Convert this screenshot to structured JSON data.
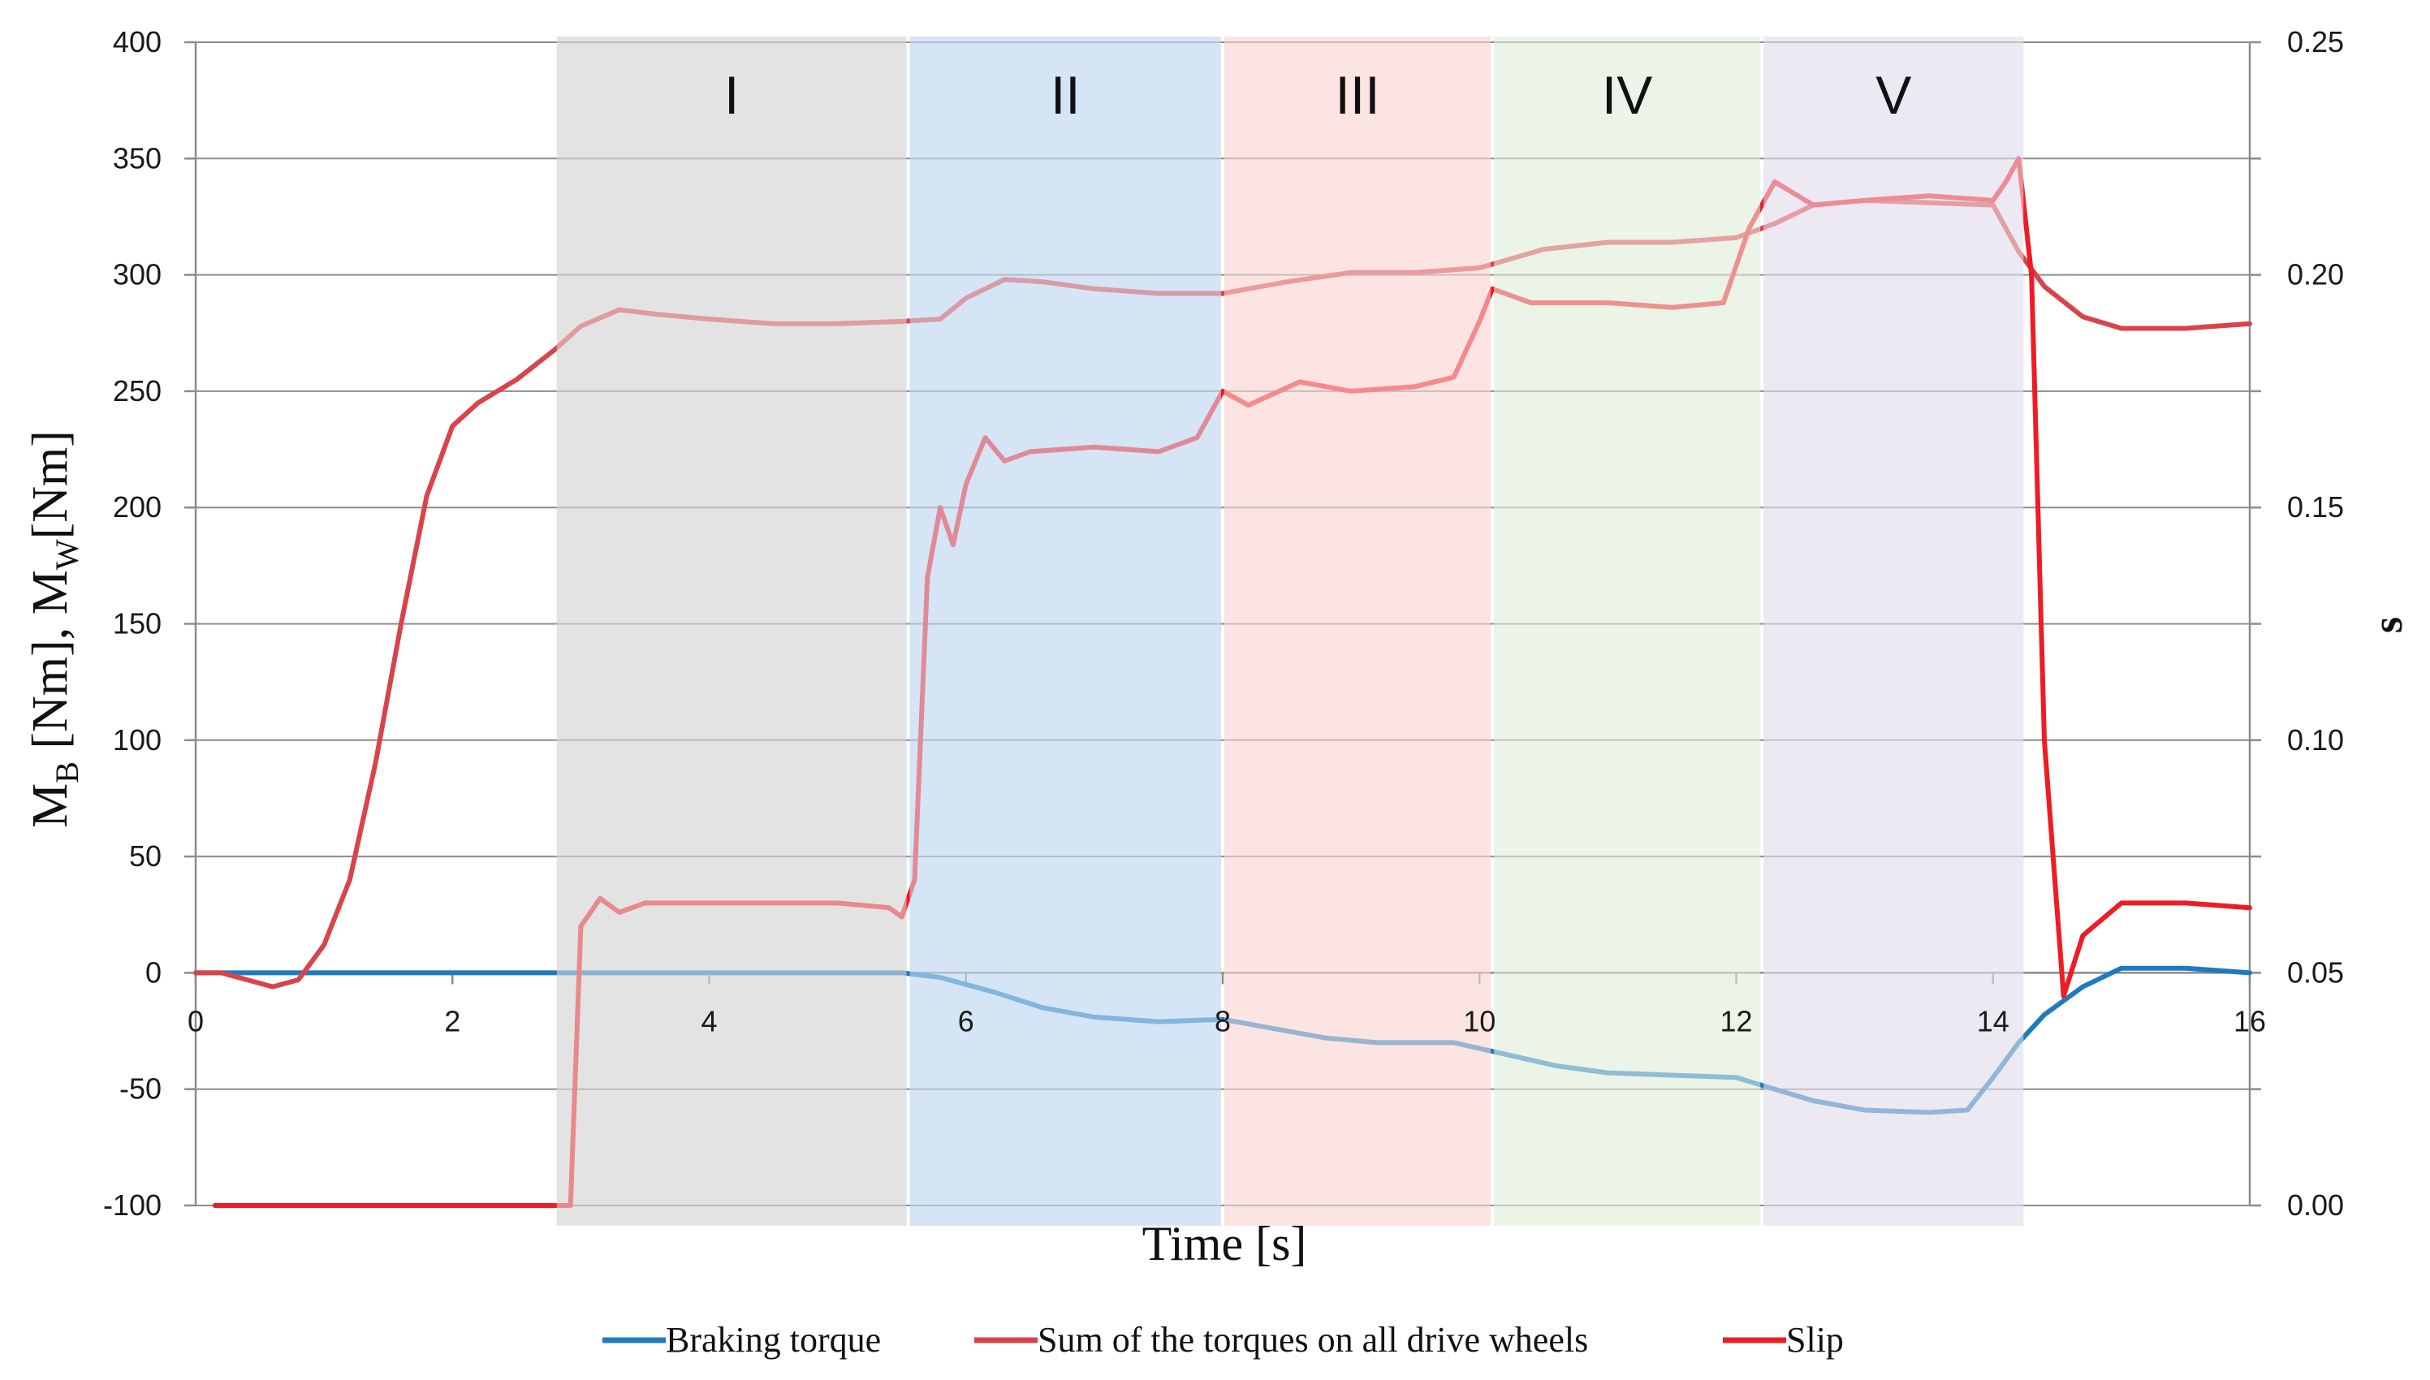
{
  "chart_data": {
    "type": "line",
    "title": "",
    "xlabel": "Time [s]",
    "ylabel": "M_B [Nm], M_W [Nm]",
    "ylabel_parts": {
      "m1": "M",
      "sub1": "B",
      "unit1": " [Nm], ",
      "m2": "M",
      "sub2": "W",
      "unit2": "[Nm]"
    },
    "y2label": "s",
    "xlim": [
      0,
      16
    ],
    "ylim": [
      -100,
      400
    ],
    "y2lim": [
      0.0,
      0.25
    ],
    "x_ticks": [
      "0",
      "2",
      "4",
      "6",
      "8",
      "10",
      "12",
      "14",
      "16"
    ],
    "y_ticks": [
      "400",
      "350",
      "300",
      "250",
      "200",
      "150",
      "100",
      "50",
      "0",
      "-50",
      "-100"
    ],
    "y2_ticks": [
      "0.25",
      "0.20",
      "0.15",
      "0.10",
      "0.05",
      "0.00"
    ],
    "grid": true,
    "legend_position": "bottom",
    "regions": [
      {
        "label": "I",
        "x0": 2.8,
        "x1": 5.55,
        "color": "#e3e3e3"
      },
      {
        "label": "II",
        "x0": 5.55,
        "x1": 8.0,
        "color": "#d5e5f5"
      },
      {
        "label": "III",
        "x0": 8.0,
        "x1": 10.1,
        "color": "#fbe4e1"
      },
      {
        "label": "IV",
        "x0": 10.1,
        "x1": 12.2,
        "color": "#ecf3e7"
      },
      {
        "label": "V",
        "x0": 12.2,
        "x1": 14.25,
        "color": "#ede9f2"
      }
    ],
    "series": [
      {
        "name": "Braking torque",
        "axis": "left",
        "color": "#1f7bbf",
        "x": [
          0,
          2,
          4,
          5.5,
          5.8,
          6.2,
          6.6,
          7,
          7.5,
          8,
          8.4,
          8.8,
          9.2,
          9.8,
          10.2,
          10.6,
          11,
          11.5,
          12,
          12.3,
          12.6,
          13,
          13.5,
          13.8,
          14,
          14.2,
          14.4,
          14.7,
          15,
          15.5,
          16
        ],
        "values": [
          0,
          0,
          0,
          0,
          -2,
          -8,
          -15,
          -19,
          -21,
          -20,
          -24,
          -28,
          -30,
          -30,
          -35,
          -40,
          -43,
          -44,
          -45,
          -50,
          -55,
          -59,
          -60,
          -59,
          -45,
          -30,
          -18,
          -6,
          2,
          2,
          0
        ]
      },
      {
        "name": "Sum of the torques on all drive wheels",
        "axis": "left",
        "color": "#d9434b",
        "x": [
          0,
          0.2,
          0.4,
          0.6,
          0.8,
          1.0,
          1.2,
          1.4,
          1.6,
          1.8,
          2.0,
          2.2,
          2.5,
          2.8,
          3.0,
          3.3,
          3.6,
          4,
          4.5,
          5,
          5.5,
          5.8,
          6.0,
          6.3,
          6.6,
          7,
          7.5,
          8,
          8.5,
          9,
          9.5,
          10,
          10.5,
          11,
          11.5,
          12,
          12.3,
          12.6,
          13,
          13.5,
          14,
          14.2,
          14.4,
          14.7,
          15,
          15.5,
          16
        ],
        "values": [
          0,
          0,
          -3,
          -6,
          -3,
          12,
          40,
          90,
          150,
          205,
          235,
          245,
          255,
          268,
          278,
          285,
          283,
          281,
          279,
          279,
          280,
          281,
          290,
          298,
          297,
          294,
          292,
          292,
          297,
          301,
          301,
          303,
          311,
          314,
          314,
          316,
          322,
          330,
          332,
          331,
          330,
          310,
          295,
          282,
          277,
          277,
          279
        ]
      },
      {
        "name": "Slip",
        "axis": "right",
        "color": "#ee1c25",
        "x": [
          0.15,
          2.8,
          2.92,
          3.0,
          3.15,
          3.3,
          3.5,
          3.8,
          4.2,
          4.6,
          5.0,
          5.4,
          5.5,
          5.6,
          5.7,
          5.8,
          5.9,
          6.0,
          6.15,
          6.3,
          6.5,
          7.0,
          7.5,
          7.8,
          8.0,
          8.2,
          8.6,
          9.0,
          9.5,
          9.8,
          10.0,
          10.1,
          10.4,
          11.0,
          11.5,
          11.9,
          12.1,
          12.3,
          12.6,
          13,
          13.5,
          14.0,
          14.1,
          14.2,
          14.3,
          14.4,
          14.55,
          14.7,
          15.0,
          15.5,
          16
        ],
        "values": [
          0.0,
          0.0,
          0.0,
          0.06,
          0.066,
          0.063,
          0.065,
          0.065,
          0.065,
          0.065,
          0.065,
          0.064,
          0.062,
          0.07,
          0.135,
          0.15,
          0.142,
          0.155,
          0.165,
          0.16,
          0.162,
          0.163,
          0.162,
          0.165,
          0.175,
          0.172,
          0.177,
          0.175,
          0.176,
          0.178,
          0.19,
          0.197,
          0.194,
          0.194,
          0.193,
          0.194,
          0.21,
          0.22,
          0.215,
          0.216,
          0.217,
          0.216,
          0.22,
          0.225,
          0.2,
          0.1,
          0.045,
          0.058,
          0.065,
          0.065,
          0.064
        ]
      }
    ]
  }
}
